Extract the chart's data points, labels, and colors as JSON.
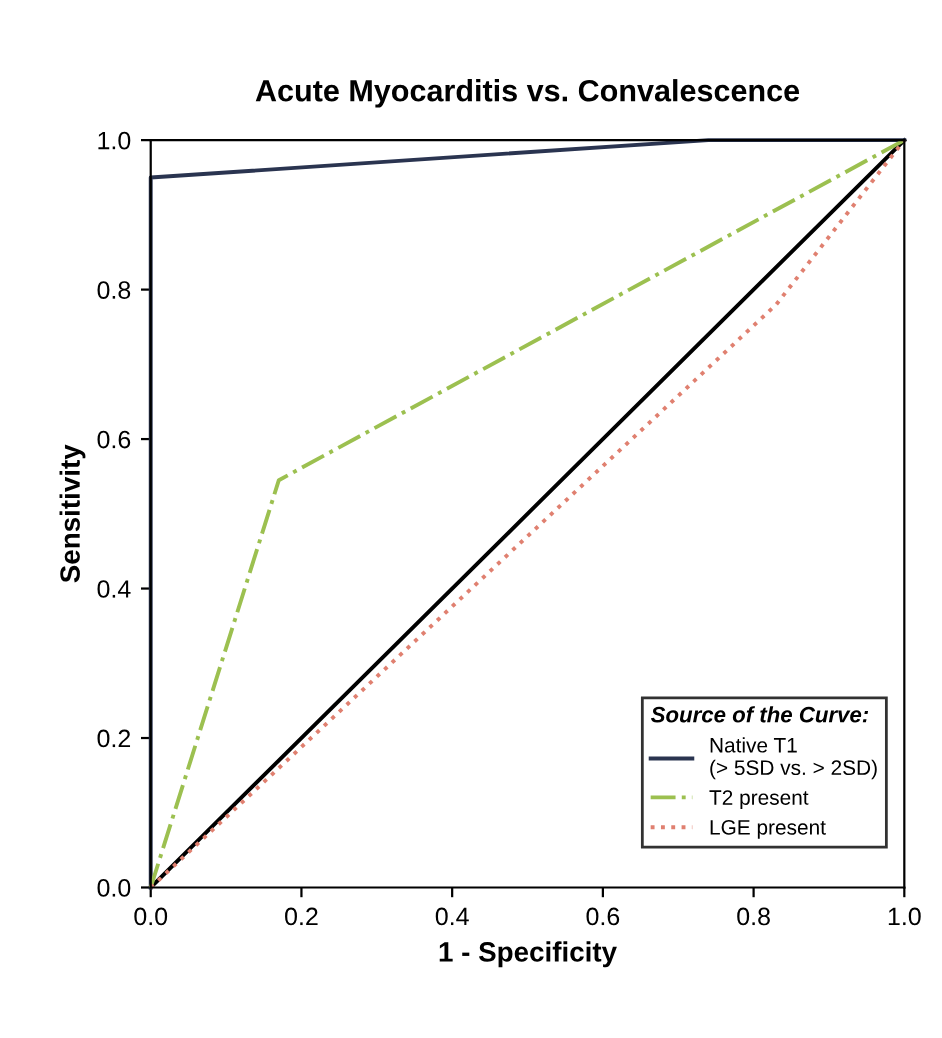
{
  "chart_data": {
    "type": "line",
    "title": "Acute Myocarditis vs. Convalescence",
    "xlabel": "1 - Specificity",
    "ylabel": "Sensitivity",
    "legend_title": "Source of the Curve:",
    "xlim": [
      0,
      1
    ],
    "ylim": [
      0,
      1
    ],
    "xticks": [
      {
        "value": 0,
        "label": "0.0"
      },
      {
        "value": 0.2,
        "label": "0.2"
      },
      {
        "value": 0.4,
        "label": "0.4"
      },
      {
        "value": 0.6,
        "label": "0.6"
      },
      {
        "value": 0.8,
        "label": "0.8"
      },
      {
        "value": 1,
        "label": "1.0"
      }
    ],
    "yticks": [
      {
        "value": 0,
        "label": "0.0"
      },
      {
        "value": 0.2,
        "label": "0.2"
      },
      {
        "value": 0.4,
        "label": "0.4"
      },
      {
        "value": 0.6,
        "label": "0.6"
      },
      {
        "value": 0.8,
        "label": "0.8"
      },
      {
        "value": 1,
        "label": "1.0"
      }
    ],
    "grid": false,
    "legend": "bottom right",
    "marker": "none",
    "series": [
      {
        "color": "#000000",
        "x": [
          0,
          1
        ],
        "values": [
          0,
          1
        ],
        "line_style": "solid"
      },
      {
        "name": "Native T1\n(> 5SD vs. > 2SD)",
        "color": "#2a3450",
        "x": [
          0,
          0,
          0.74,
          1
        ],
        "values": [
          0,
          0.95,
          1,
          1
        ],
        "line_style": "solid"
      },
      {
        "name": "T2 present",
        "color": "#9cc050",
        "x": [
          0,
          0.17,
          1
        ],
        "values": [
          0,
          0.545,
          1
        ],
        "line_style": "dashdot"
      },
      {
        "name": "LGE present",
        "color": "#e08070",
        "x": [
          0,
          0.5,
          0.83,
          1
        ],
        "values": [
          0,
          0.47,
          0.78,
          1
        ],
        "line_style": "dotted"
      }
    ]
  }
}
